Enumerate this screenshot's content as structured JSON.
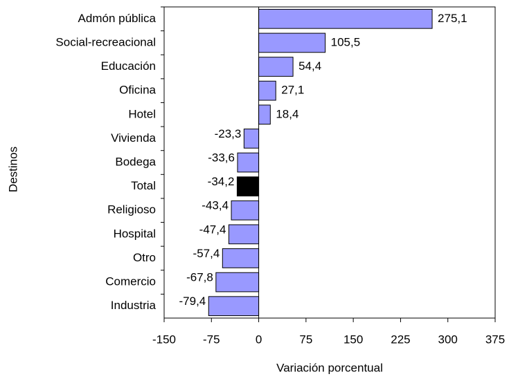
{
  "chart_data": {
    "type": "bar",
    "orientation": "horizontal",
    "x_label": "Variación porcentual",
    "y_label": "Destinos",
    "categories": [
      "Admón pública",
      "Social-recreacional",
      "Educación",
      "Oficina",
      "Hotel",
      "Vivienda",
      "Bodega",
      "Total",
      "Religioso",
      "Hospital",
      "Otro",
      "Comercio",
      "Industria"
    ],
    "values": [
      275.1,
      105.5,
      54.4,
      27.1,
      18.4,
      -23.3,
      -33.6,
      -34.2,
      -43.4,
      -47.4,
      -57.4,
      -67.8,
      -79.4
    ],
    "value_labels": [
      "275,1",
      "105,5",
      "54,4",
      "27,1",
      "18,4",
      "-23,3",
      "-33,6",
      "-34,2",
      "-43,4",
      "-47,4",
      "-57,4",
      "-67,8",
      "-79,4"
    ],
    "colors": [
      "#9999ff",
      "#9999ff",
      "#9999ff",
      "#9999ff",
      "#9999ff",
      "#9999ff",
      "#9999ff",
      "#000000",
      "#9999ff",
      "#9999ff",
      "#9999ff",
      "#9999ff",
      "#9999ff"
    ],
    "xlim": [
      -150,
      375
    ],
    "xticks": [
      -150,
      -75,
      0,
      75,
      150,
      225,
      300,
      375
    ]
  }
}
